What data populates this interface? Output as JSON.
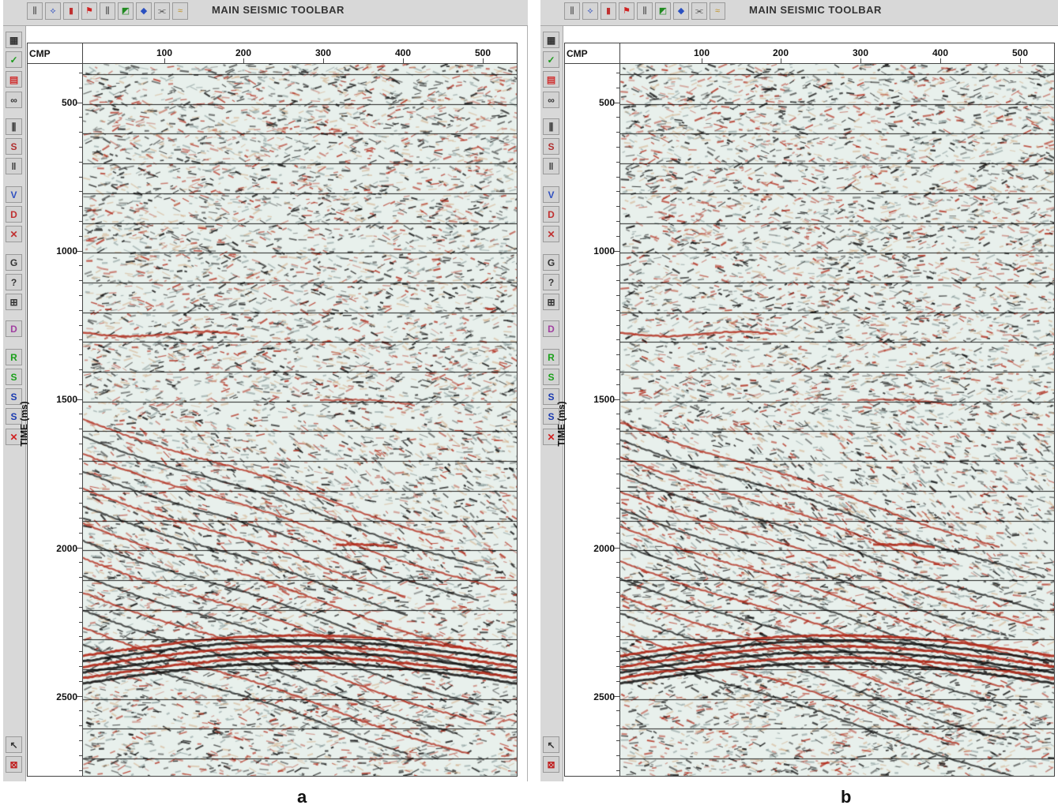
{
  "panels": [
    {
      "id": "a",
      "caption": "a",
      "toolbar_title": "MAIN SEISMIC TOOLBAR",
      "x_axis_label": "CMP",
      "x_ticks": [
        "100",
        "200",
        "300",
        "400",
        "500"
      ],
      "y_axis_label": "TIME (ms)",
      "y_ticks": [
        "500",
        "1000",
        "1500",
        "2000",
        "2500"
      ]
    },
    {
      "id": "b",
      "caption": "b",
      "toolbar_title": "MAIN SEISMIC TOOLBAR",
      "x_axis_label": "CMP",
      "x_ticks": [
        "100",
        "200",
        "300",
        "400",
        "500"
      ],
      "y_axis_label": "TIME (ms)",
      "y_ticks": [
        "500",
        "1000",
        "1500",
        "2000",
        "2500"
      ]
    }
  ],
  "toolbar_icons": [
    "wiggle-icon",
    "pick-icon",
    "bar-spectrum-icon",
    "flag-icon",
    "traces-icon",
    "velocity-icon",
    "map-icon",
    "stack-icon",
    "wave-icon"
  ],
  "sidebar_icons": [
    {
      "name": "file-icon",
      "glyph": "▦",
      "color": "#333333"
    },
    {
      "name": "check-icon",
      "glyph": "✓",
      "color": "#1a9a1a"
    },
    {
      "name": "palette-icon",
      "glyph": "▤",
      "color": "#d03030"
    },
    {
      "name": "glasses-icon",
      "glyph": "∞",
      "color": "#333333"
    },
    {
      "name": "traces-icon",
      "glyph": "⫼",
      "color": "#333333"
    },
    {
      "name": "sort-icon",
      "glyph": "S",
      "color": "#b03030"
    },
    {
      "name": "gather-icon",
      "glyph": "‖",
      "color": "#333333"
    },
    {
      "name": "velocity-icon",
      "glyph": "V",
      "color": "#3050c0"
    },
    {
      "name": "decon-icon",
      "glyph": "D",
      "color": "#c03030"
    },
    {
      "name": "mute-icon",
      "glyph": "✕",
      "color": "#c03030"
    },
    {
      "name": "gain-icon",
      "glyph": "G",
      "color": "#333333"
    },
    {
      "name": "query-icon",
      "glyph": "?",
      "color": "#333333"
    },
    {
      "name": "grid-icon",
      "glyph": "⊞",
      "color": "#333333"
    },
    {
      "name": "dx-icon",
      "glyph": "D",
      "color": "#a040a0"
    },
    {
      "name": "r-icon",
      "glyph": "R",
      "color": "#1aa01a"
    },
    {
      "name": "s-icon",
      "glyph": "S",
      "color": "#1aa01a"
    },
    {
      "name": "s-minus-icon",
      "glyph": "S",
      "color": "#1a3ab0"
    },
    {
      "name": "s-plus-icon",
      "glyph": "S",
      "color": "#1a3ab0"
    },
    {
      "name": "cancel-icon",
      "glyph": "✕",
      "color": "#d02020"
    },
    {
      "name": "pointer-icon",
      "glyph": "↖",
      "color": "#333333"
    },
    {
      "name": "no-display-icon",
      "glyph": "⊠",
      "color": "#c02020"
    }
  ],
  "colors": {
    "positive": "#b02818",
    "negative": "#151515",
    "background": "#e8f0ec"
  }
}
